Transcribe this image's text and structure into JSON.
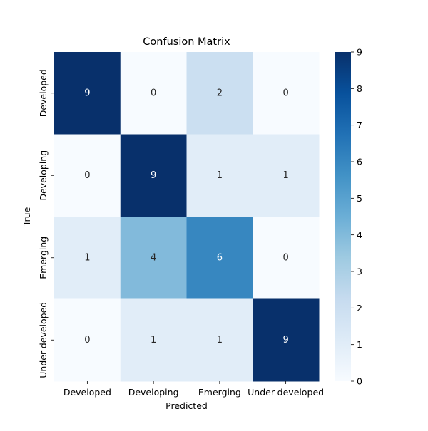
{
  "chart_data": {
    "type": "heatmap",
    "title": "Confusion Matrix",
    "xlabel": "Predicted",
    "ylabel": "True",
    "x_categories": [
      "Developed",
      "Developing",
      "Emerging",
      "Under-developed"
    ],
    "y_categories": [
      "Developed",
      "Developing",
      "Emerging",
      "Under-developed"
    ],
    "values": [
      [
        9,
        0,
        2,
        0
      ],
      [
        0,
        9,
        1,
        1
      ],
      [
        1,
        4,
        6,
        0
      ],
      [
        0,
        1,
        1,
        9
      ]
    ],
    "colormap": "Blues",
    "vmin": 0,
    "vmax": 9,
    "colorbar_ticks": [
      0,
      1,
      2,
      3,
      4,
      5,
      6,
      7,
      8,
      9
    ],
    "annotations": true
  }
}
